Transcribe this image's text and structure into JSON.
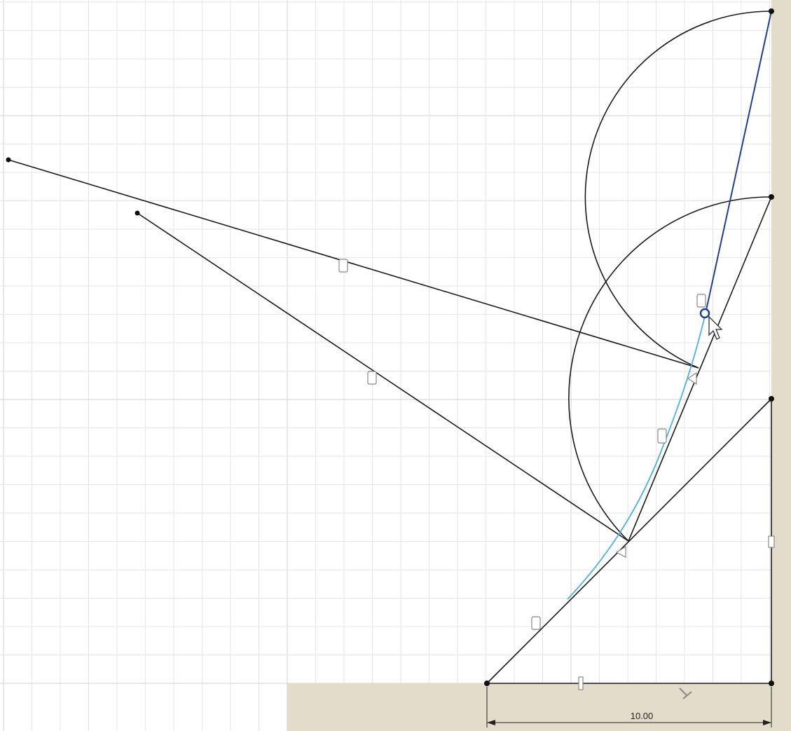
{
  "dimension": {
    "label": "10.00"
  }
}
